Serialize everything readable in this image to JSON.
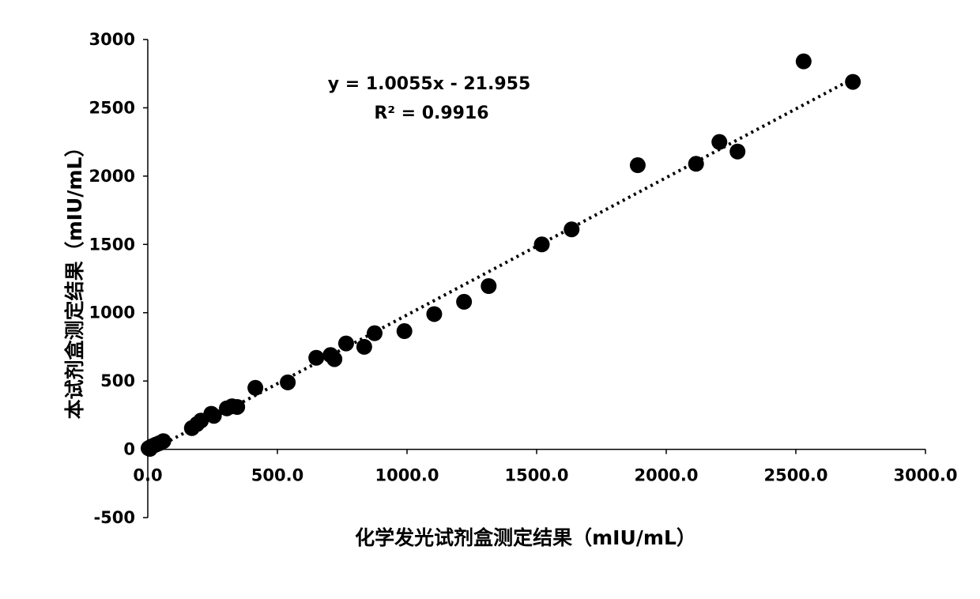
{
  "chart_data": {
    "type": "scatter",
    "xlabel": "化学发光试剂盒测定结果（mIU/mL）",
    "ylabel": "本试剂盒测定结果（mIU/mL）",
    "xlim": [
      0,
      3000
    ],
    "ylim": [
      -500,
      3000
    ],
    "x_ticks": [
      0,
      500,
      1000,
      1500,
      2000,
      2500,
      3000
    ],
    "x_tick_labels": [
      "0.0",
      "500.0",
      "1000.0",
      "1500.0",
      "2000.0",
      "2500.0",
      "3000.0"
    ],
    "y_ticks": [
      -500,
      0,
      500,
      1000,
      1500,
      2000,
      2500,
      3000
    ],
    "y_tick_labels": [
      "-500",
      "0",
      "500",
      "1000",
      "1500",
      "2000",
      "2500",
      "3000"
    ],
    "grid": false,
    "legend": "none",
    "marker_color": "#000000",
    "trendline": {
      "type": "linear",
      "style": "dotted",
      "slope": 1.0055,
      "intercept": -21.955,
      "x_range": [
        0,
        2730
      ],
      "equation_label": "y = 1.0055x - 21.955",
      "r2_label": "R² = 0.9916"
    },
    "series": [
      {
        "points": [
          [
            3,
            8
          ],
          [
            8,
            3
          ],
          [
            12,
            18
          ],
          [
            20,
            25
          ],
          [
            32,
            35
          ],
          [
            45,
            45
          ],
          [
            60,
            60
          ],
          [
            170,
            155
          ],
          [
            190,
            185
          ],
          [
            205,
            210
          ],
          [
            245,
            260
          ],
          [
            255,
            245
          ],
          [
            305,
            300
          ],
          [
            325,
            315
          ],
          [
            345,
            310
          ],
          [
            415,
            450
          ],
          [
            540,
            490
          ],
          [
            650,
            670
          ],
          [
            705,
            690
          ],
          [
            720,
            660
          ],
          [
            765,
            775
          ],
          [
            835,
            750
          ],
          [
            875,
            850
          ],
          [
            990,
            865
          ],
          [
            1105,
            990
          ],
          [
            1220,
            1080
          ],
          [
            1315,
            1195
          ],
          [
            1520,
            1500
          ],
          [
            1635,
            1610
          ],
          [
            1890,
            2080
          ],
          [
            2115,
            2090
          ],
          [
            2205,
            2250
          ],
          [
            2275,
            2180
          ],
          [
            2530,
            2840
          ],
          [
            2720,
            2690
          ]
        ]
      }
    ]
  }
}
